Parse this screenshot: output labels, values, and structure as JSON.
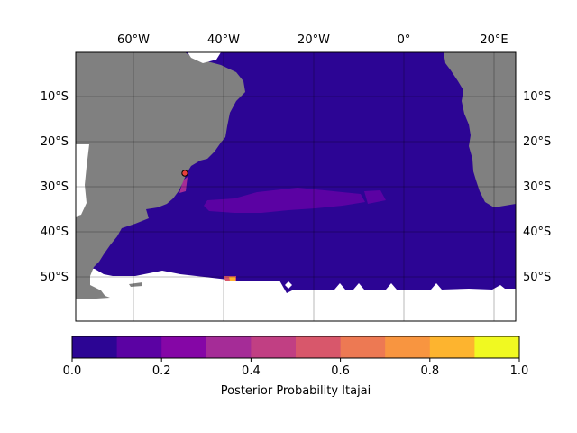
{
  "map": {
    "top_lon_labels": [
      "60°W",
      "40°W",
      "20°W",
      "0°",
      "20°E"
    ],
    "lat_labels": [
      "10°S",
      "20°S",
      "30°S",
      "40°S",
      "50°S"
    ],
    "ocean_color": "#2c0594",
    "land_color": "#808080",
    "marker_label": "Itajai release point",
    "marker_color": "#e8413c"
  },
  "colorbar": {
    "label": "Posterior Probability Itajai",
    "tick_labels": [
      "0.0",
      "0.2",
      "0.4",
      "0.6",
      "0.8",
      "1.0"
    ],
    "bins": [
      {
        "range": [
          0.0,
          0.1
        ],
        "color": "#2c0594"
      },
      {
        "range": [
          0.1,
          0.2
        ],
        "color": "#5b02a3"
      },
      {
        "range": [
          0.2,
          0.3
        ],
        "color": "#8506a6"
      },
      {
        "range": [
          0.3,
          0.4
        ],
        "color": "#a52c97"
      },
      {
        "range": [
          0.4,
          0.5
        ],
        "color": "#c13f83"
      },
      {
        "range": [
          0.5,
          0.6
        ],
        "color": "#d8576b"
      },
      {
        "range": [
          0.6,
          0.7
        ],
        "color": "#ed7953"
      },
      {
        "range": [
          0.7,
          0.8
        ],
        "color": "#f89540"
      },
      {
        "range": [
          0.8,
          0.9
        ],
        "color": "#fdb42f"
      },
      {
        "range": [
          0.9,
          1.0
        ],
        "color": "#f0f921"
      }
    ]
  }
}
